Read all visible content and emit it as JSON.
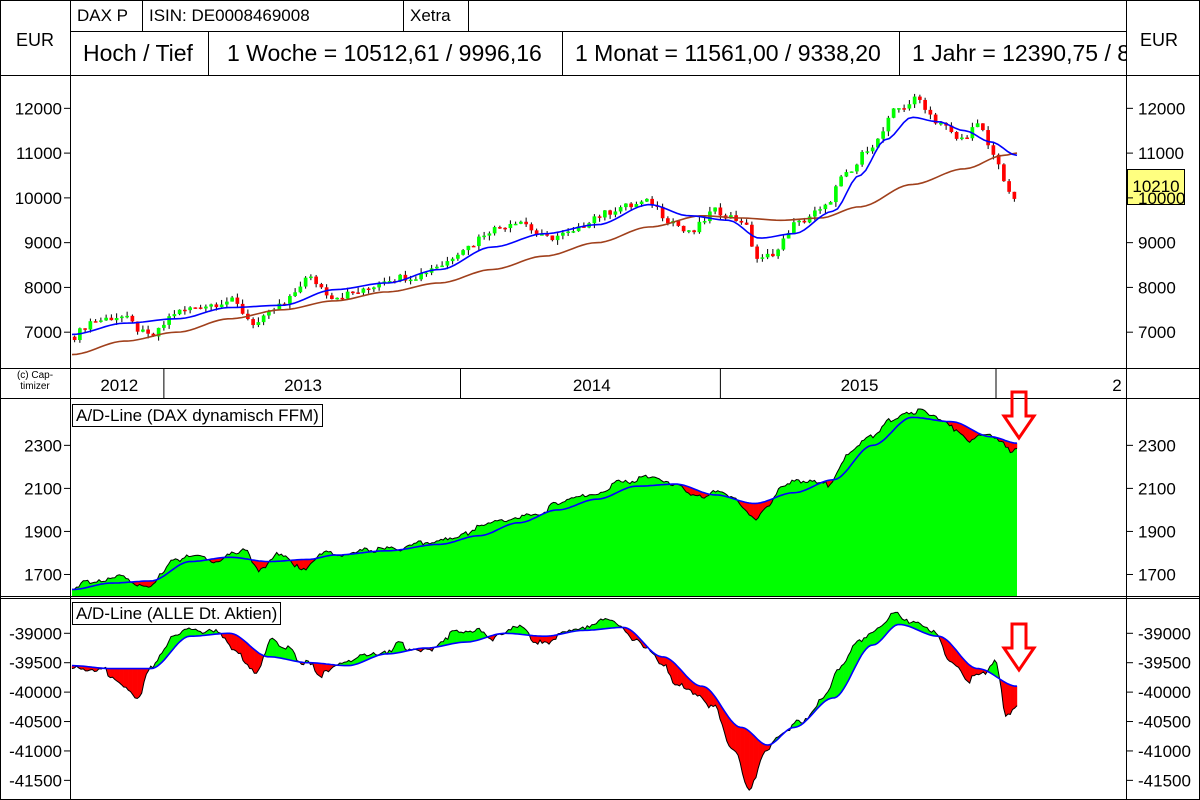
{
  "header": {
    "symbol": "DAX P",
    "isin": "ISIN: DE0008469008",
    "exchange": "Xetra",
    "currency_left": "EUR",
    "currency_right": "EUR",
    "range_title": "Hoch / Tief",
    "week": "1 Woche = 10512,61 / 9996,16",
    "month": "1 Monat = 11561,00 / 9338,20",
    "year": "1 Jahr = 12390,75 / 8"
  },
  "copyright": "(c) Cap-\ntimizer",
  "current_price": "10210",
  "colors": {
    "up": "#00ff00",
    "down": "#ff0000",
    "ma_short": "#0000ff",
    "ma_long": "#a0401c",
    "badge": "#ffff80",
    "arrow": "#ff0000"
  },
  "chart_data": [
    {
      "type": "candlestick",
      "title": "",
      "ylim": [
        6200,
        12700
      ],
      "yticks": [
        7000,
        8000,
        9000,
        10000,
        11000,
        12000
      ],
      "ytick_labels": [
        "7000",
        "8000",
        "9000",
        "10000",
        "11000",
        "12000"
      ],
      "x_range": [
        2012.0,
        2015.6
      ],
      "year_labels": [
        {
          "label": "2012",
          "x": 2012.0
        },
        {
          "label": "2013",
          "x": 2013.0
        },
        {
          "label": "2014",
          "x": 2014.0
        },
        {
          "label": "2015",
          "x": 2015.0
        },
        {
          "label": "2",
          "x": 2015.5
        }
      ],
      "close_keypoints": [
        [
          2012.0,
          6900
        ],
        [
          2012.08,
          7250
        ],
        [
          2012.18,
          7350
        ],
        [
          2012.3,
          6900
        ],
        [
          2012.4,
          7450
        ],
        [
          2012.5,
          7600
        ],
        [
          2012.6,
          7700
        ],
        [
          2012.7,
          7200
        ],
        [
          2012.8,
          7600
        ],
        [
          2012.9,
          8200
        ],
        [
          2013.0,
          7800
        ],
        [
          2013.1,
          7900
        ],
        [
          2013.2,
          8200
        ],
        [
          2013.3,
          8250
        ],
        [
          2013.4,
          8500
        ],
        [
          2013.5,
          8900
        ],
        [
          2013.6,
          9300
        ],
        [
          2013.7,
          9500
        ],
        [
          2013.8,
          9100
        ],
        [
          2013.9,
          9200
        ],
        [
          2014.0,
          9600
        ],
        [
          2014.1,
          9800
        ],
        [
          2014.2,
          9900
        ],
        [
          2014.28,
          9500
        ],
        [
          2014.35,
          9200
        ],
        [
          2014.45,
          9700
        ],
        [
          2014.55,
          9500
        ],
        [
          2014.62,
          8600
        ],
        [
          2014.68,
          8800
        ],
        [
          2014.75,
          9400
        ],
        [
          2014.85,
          9700
        ],
        [
          2014.95,
          10500
        ],
        [
          2015.05,
          11200
        ],
        [
          2015.15,
          12000
        ],
        [
          2015.22,
          12200
        ],
        [
          2015.3,
          11700
        ],
        [
          2015.38,
          11300
        ],
        [
          2015.45,
          11600
        ],
        [
          2015.52,
          10900
        ],
        [
          2015.56,
          10300
        ],
        [
          2015.58,
          9800
        ],
        [
          2015.6,
          10210
        ]
      ],
      "ma_short_keypoints": [
        [
          2012.0,
          6950
        ],
        [
          2012.2,
          7200
        ],
        [
          2012.4,
          7300
        ],
        [
          2012.6,
          7550
        ],
        [
          2012.8,
          7600
        ],
        [
          2013.0,
          7950
        ],
        [
          2013.2,
          8100
        ],
        [
          2013.4,
          8400
        ],
        [
          2013.6,
          8900
        ],
        [
          2013.8,
          9200
        ],
        [
          2014.0,
          9400
        ],
        [
          2014.2,
          9850
        ],
        [
          2014.35,
          9600
        ],
        [
          2014.5,
          9500
        ],
        [
          2014.62,
          9100
        ],
        [
          2014.75,
          9200
        ],
        [
          2014.9,
          9700
        ],
        [
          2015.0,
          10500
        ],
        [
          2015.1,
          11300
        ],
        [
          2015.2,
          11800
        ],
        [
          2015.3,
          11700
        ],
        [
          2015.4,
          11500
        ],
        [
          2015.5,
          11250
        ],
        [
          2015.6,
          10950
        ]
      ],
      "ma_long_keypoints": [
        [
          2012.0,
          6500
        ],
        [
          2012.2,
          6800
        ],
        [
          2012.4,
          7000
        ],
        [
          2012.6,
          7300
        ],
        [
          2012.8,
          7500
        ],
        [
          2013.0,
          7700
        ],
        [
          2013.2,
          7900
        ],
        [
          2013.4,
          8100
        ],
        [
          2013.6,
          8400
        ],
        [
          2013.8,
          8700
        ],
        [
          2014.0,
          9000
        ],
        [
          2014.2,
          9350
        ],
        [
          2014.4,
          9600
        ],
        [
          2014.55,
          9550
        ],
        [
          2014.7,
          9500
        ],
        [
          2014.85,
          9550
        ],
        [
          2015.0,
          9800
        ],
        [
          2015.2,
          10300
        ],
        [
          2015.4,
          10650
        ],
        [
          2015.55,
          10950
        ],
        [
          2015.6,
          11000
        ]
      ]
    },
    {
      "type": "area",
      "title": "A/D-Line (DAX dynamisch FFM)",
      "ylim": [
        1600,
        2520
      ],
      "yticks": [
        1700,
        1900,
        2100,
        2300
      ],
      "ytick_labels": [
        "1700",
        "1900",
        "2100",
        "2300"
      ],
      "x_range": [
        2012.0,
        2015.6
      ],
      "line_keypoints": [
        [
          2012.0,
          1640
        ],
        [
          2012.1,
          1680
        ],
        [
          2012.2,
          1690
        ],
        [
          2012.25,
          1650
        ],
        [
          2012.3,
          1640
        ],
        [
          2012.38,
          1760
        ],
        [
          2012.45,
          1800
        ],
        [
          2012.55,
          1760
        ],
        [
          2012.65,
          1810
        ],
        [
          2012.72,
          1720
        ],
        [
          2012.8,
          1800
        ],
        [
          2012.88,
          1720
        ],
        [
          2012.95,
          1800
        ],
        [
          2013.05,
          1790
        ],
        [
          2013.15,
          1820
        ],
        [
          2013.25,
          1820
        ],
        [
          2013.35,
          1850
        ],
        [
          2013.45,
          1860
        ],
        [
          2013.55,
          1920
        ],
        [
          2013.62,
          1940
        ],
        [
          2013.7,
          1960
        ],
        [
          2013.78,
          1990
        ],
        [
          2013.85,
          2030
        ],
        [
          2013.92,
          2050
        ],
        [
          2014.0,
          2080
        ],
        [
          2014.1,
          2130
        ],
        [
          2014.2,
          2160
        ],
        [
          2014.3,
          2110
        ],
        [
          2014.38,
          2060
        ],
        [
          2014.45,
          2080
        ],
        [
          2014.52,
          2050
        ],
        [
          2014.6,
          1960
        ],
        [
          2014.65,
          2020
        ],
        [
          2014.72,
          2120
        ],
        [
          2014.8,
          2130
        ],
        [
          2014.88,
          2120
        ],
        [
          2014.95,
          2250
        ],
        [
          2015.05,
          2350
        ],
        [
          2015.12,
          2420
        ],
        [
          2015.2,
          2460
        ],
        [
          2015.28,
          2440
        ],
        [
          2015.36,
          2380
        ],
        [
          2015.42,
          2320
        ],
        [
          2015.48,
          2360
        ],
        [
          2015.54,
          2320
        ],
        [
          2015.58,
          2260
        ],
        [
          2015.6,
          2280
        ]
      ],
      "ma_keypoints": [
        [
          2012.0,
          1630
        ],
        [
          2012.15,
          1660
        ],
        [
          2012.3,
          1670
        ],
        [
          2012.45,
          1760
        ],
        [
          2012.6,
          1780
        ],
        [
          2012.75,
          1760
        ],
        [
          2012.9,
          1770
        ],
        [
          2013.0,
          1790
        ],
        [
          2013.2,
          1810
        ],
        [
          2013.4,
          1840
        ],
        [
          2013.55,
          1880
        ],
        [
          2013.7,
          1940
        ],
        [
          2013.85,
          2000
        ],
        [
          2014.0,
          2050
        ],
        [
          2014.15,
          2110
        ],
        [
          2014.3,
          2120
        ],
        [
          2014.45,
          2070
        ],
        [
          2014.6,
          2030
        ],
        [
          2014.75,
          2080
        ],
        [
          2014.9,
          2140
        ],
        [
          2015.05,
          2300
        ],
        [
          2015.2,
          2430
        ],
        [
          2015.35,
          2410
        ],
        [
          2015.5,
          2340
        ],
        [
          2015.6,
          2310
        ]
      ]
    },
    {
      "type": "area",
      "title": "A/D-Line (ALLE Dt. Aktien)",
      "ylim": [
        -41800,
        -38400
      ],
      "yticks": [
        -39000,
        -39500,
        -40000,
        -40500,
        -41000,
        -41500
      ],
      "ytick_labels": [
        "-39000",
        "-39500",
        "-40000",
        "-40500",
        "-41000",
        "-41500"
      ],
      "x_range": [
        2012.0,
        2015.6
      ],
      "line_keypoints": [
        [
          2012.0,
          -39600
        ],
        [
          2012.12,
          -39650
        ],
        [
          2012.2,
          -39900
        ],
        [
          2012.25,
          -40100
        ],
        [
          2012.3,
          -39600
        ],
        [
          2012.38,
          -39100
        ],
        [
          2012.45,
          -38950
        ],
        [
          2012.55,
          -38950
        ],
        [
          2012.62,
          -39300
        ],
        [
          2012.7,
          -39600
        ],
        [
          2012.76,
          -39100
        ],
        [
          2012.82,
          -39200
        ],
        [
          2012.88,
          -39500
        ],
        [
          2012.96,
          -39700
        ],
        [
          2013.05,
          -39500
        ],
        [
          2013.15,
          -39400
        ],
        [
          2013.25,
          -39200
        ],
        [
          2013.35,
          -39300
        ],
        [
          2013.45,
          -39000
        ],
        [
          2013.55,
          -38950
        ],
        [
          2013.6,
          -39100
        ],
        [
          2013.7,
          -38900
        ],
        [
          2013.8,
          -39200
        ],
        [
          2013.88,
          -39000
        ],
        [
          2013.95,
          -38900
        ],
        [
          2014.05,
          -38800
        ],
        [
          2014.15,
          -39100
        ],
        [
          2014.25,
          -39500
        ],
        [
          2014.3,
          -39900
        ],
        [
          2014.38,
          -40000
        ],
        [
          2014.45,
          -40300
        ],
        [
          2014.52,
          -41000
        ],
        [
          2014.58,
          -41700
        ],
        [
          2014.64,
          -41000
        ],
        [
          2014.7,
          -40700
        ],
        [
          2014.78,
          -40500
        ],
        [
          2014.85,
          -40200
        ],
        [
          2014.92,
          -39600
        ],
        [
          2015.0,
          -39100
        ],
        [
          2015.08,
          -38900
        ],
        [
          2015.13,
          -38650
        ],
        [
          2015.2,
          -38800
        ],
        [
          2015.28,
          -39000
        ],
        [
          2015.35,
          -39500
        ],
        [
          2015.42,
          -39800
        ],
        [
          2015.48,
          -39700
        ],
        [
          2015.52,
          -39500
        ],
        [
          2015.56,
          -40400
        ],
        [
          2015.6,
          -40300
        ]
      ],
      "ma_keypoints": [
        [
          2012.0,
          -39550
        ],
        [
          2012.15,
          -39600
        ],
        [
          2012.3,
          -39600
        ],
        [
          2012.45,
          -39050
        ],
        [
          2012.6,
          -39000
        ],
        [
          2012.75,
          -39400
        ],
        [
          2012.9,
          -39500
        ],
        [
          2013.05,
          -39550
        ],
        [
          2013.2,
          -39350
        ],
        [
          2013.35,
          -39250
        ],
        [
          2013.5,
          -39150
        ],
        [
          2013.65,
          -39000
        ],
        [
          2013.8,
          -39050
        ],
        [
          2013.95,
          -38950
        ],
        [
          2014.1,
          -38900
        ],
        [
          2014.25,
          -39400
        ],
        [
          2014.4,
          -39900
        ],
        [
          2014.55,
          -40600
        ],
        [
          2014.65,
          -40900
        ],
        [
          2014.75,
          -40600
        ],
        [
          2014.9,
          -40100
        ],
        [
          2015.05,
          -39200
        ],
        [
          2015.15,
          -38850
        ],
        [
          2015.3,
          -39050
        ],
        [
          2015.45,
          -39600
        ],
        [
          2015.6,
          -39900
        ]
      ]
    }
  ]
}
